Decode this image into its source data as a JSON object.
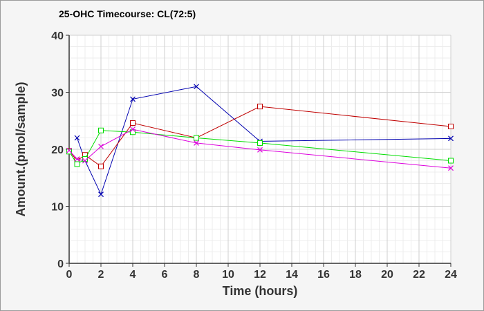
{
  "chart_data": {
    "type": "line",
    "title": "25-OHC Timecourse: CL(72:5)",
    "xlabel": "Time (hours)",
    "ylabel": "Amount.(pmol/sample)",
    "xlim": [
      0,
      24
    ],
    "ylim": [
      0,
      40
    ],
    "x_ticks": [
      0,
      2,
      4,
      6,
      8,
      10,
      12,
      14,
      16,
      18,
      20,
      22,
      24
    ],
    "y_ticks": [
      0,
      10,
      20,
      30,
      40
    ],
    "grid": true,
    "legend": "none",
    "series": [
      {
        "color": "#0000b0",
        "marker": "x",
        "x": [
          0.5,
          1,
          2,
          4,
          8,
          12,
          24
        ],
        "y": [
          22.0,
          18.0,
          12.1,
          28.8,
          31.0,
          21.4,
          21.9
        ]
      },
      {
        "color": "#c00000",
        "marker": "square",
        "x": [
          0,
          0.5,
          1,
          2,
          4,
          8,
          12,
          24
        ],
        "y": [
          19.7,
          18.0,
          19.0,
          17.0,
          24.6,
          22.0,
          27.5,
          24.0
        ]
      },
      {
        "color": "#00dd00",
        "marker": "square",
        "x": [
          0,
          0.5,
          1,
          2,
          4,
          8,
          12,
          24
        ],
        "y": [
          19.6,
          17.4,
          18.3,
          23.3,
          23.0,
          22.0,
          21.1,
          18.0
        ]
      },
      {
        "color": "#dd00dd",
        "marker": "x",
        "x": [
          0,
          0.5,
          1,
          2,
          4,
          8,
          12,
          24
        ],
        "y": [
          19.8,
          18.3,
          18.0,
          20.5,
          23.5,
          21.1,
          19.9,
          16.7
        ]
      }
    ]
  }
}
